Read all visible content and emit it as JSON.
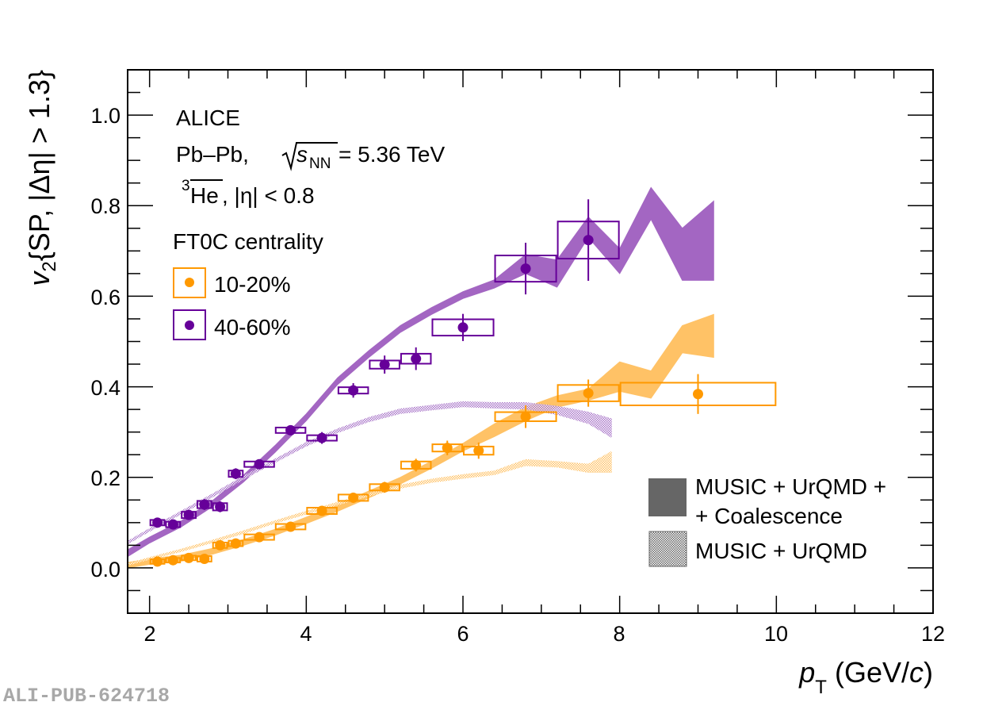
{
  "chart_data": {
    "type": "scatter",
    "title": "",
    "xlabel": "p_T (GeV/c)",
    "xlabel_parts": {
      "p": "p",
      "sub": "T",
      "rest": " (GeV/",
      "c": "c",
      "close": ")"
    },
    "ylabel": "v2{SP, |Δη| > 1.3}",
    "ylabel_parts": {
      "v": "v",
      "sub": "2",
      "rest": "{SP, |Δη| > 1.3}"
    },
    "xlim": [
      1.72,
      12
    ],
    "ylim": [
      -0.1,
      1.1
    ],
    "xticks": [
      2,
      4,
      6,
      8,
      10,
      12
    ],
    "xtick_labels": [
      "2",
      "4",
      "6",
      "8",
      "10",
      "12"
    ],
    "yticks": [
      0.0,
      0.2,
      0.4,
      0.6,
      0.8,
      1.0
    ],
    "ytick_labels": [
      "0.0",
      "0.2",
      "0.4",
      "0.6",
      "0.8",
      "1.0"
    ],
    "grid": false,
    "annotations": {
      "experiment": "ALICE",
      "system": "Pb–Pb,",
      "energy_sym": "s",
      "energy_sub": "NN",
      "energy_val": "= 5.36 TeV",
      "particle_sup": "3",
      "particle": "He",
      "particle_cut": ", |η| < 0.8",
      "legend_title": "FT0C centrality"
    },
    "legend": {
      "placement": "top-left",
      "entries": [
        "10-20%",
        "40-60%"
      ],
      "model_placement": "bottom-right",
      "model_entries": [
        "MUSIC + UrQMD +",
        "+ Coalescence",
        "MUSIC + UrQMD"
      ]
    },
    "series": [
      {
        "name": "10-20%",
        "color": "#ff9900",
        "x": [
          2.1,
          2.3,
          2.5,
          2.7,
          2.9,
          3.1,
          3.4,
          3.8,
          4.2,
          4.6,
          5.0,
          5.4,
          5.8,
          6.2,
          6.8,
          7.6,
          9.0
        ],
        "x_lo": [
          2.0,
          2.2,
          2.4,
          2.6,
          2.8,
          3.0,
          3.2,
          3.6,
          4.0,
          4.4,
          4.8,
          5.2,
          5.6,
          6.0,
          6.4,
          7.2,
          8.0
        ],
        "x_hi": [
          2.2,
          2.4,
          2.6,
          2.8,
          3.0,
          3.2,
          3.6,
          4.0,
          4.4,
          4.8,
          5.2,
          5.6,
          6.0,
          6.4,
          7.2,
          8.0,
          10.0
        ],
        "y": [
          0.014,
          0.017,
          0.022,
          0.02,
          0.05,
          0.054,
          0.068,
          0.091,
          0.126,
          0.155,
          0.178,
          0.227,
          0.265,
          0.259,
          0.334,
          0.386,
          0.384
        ],
        "stat": [
          0.008,
          0.008,
          0.008,
          0.009,
          0.01,
          0.01,
          0.009,
          0.01,
          0.01,
          0.011,
          0.012,
          0.014,
          0.016,
          0.018,
          0.025,
          0.03,
          0.044
        ],
        "syst": [
          0.005,
          0.005,
          0.005,
          0.006,
          0.006,
          0.006,
          0.006,
          0.006,
          0.007,
          0.007,
          0.007,
          0.008,
          0.008,
          0.009,
          0.01,
          0.018,
          0.025
        ]
      },
      {
        "name": "40-60%",
        "color": "#660099",
        "x": [
          2.1,
          2.3,
          2.5,
          2.7,
          2.9,
          3.1,
          3.4,
          3.8,
          4.2,
          4.6,
          5.0,
          5.4,
          6.0,
          6.8,
          7.6
        ],
        "x_lo": [
          2.0,
          2.2,
          2.4,
          2.6,
          2.8,
          3.0,
          3.2,
          3.6,
          4.0,
          4.4,
          4.8,
          5.2,
          5.6,
          6.4,
          7.2
        ],
        "x_hi": [
          2.2,
          2.4,
          2.6,
          2.8,
          3.0,
          3.2,
          3.6,
          4.0,
          4.4,
          4.8,
          5.2,
          5.6,
          6.4,
          7.2,
          8.0
        ],
        "y": [
          0.1,
          0.096,
          0.117,
          0.14,
          0.135,
          0.208,
          0.229,
          0.304,
          0.287,
          0.392,
          0.449,
          0.462,
          0.531,
          0.661,
          0.724
        ],
        "stat": [
          0.009,
          0.01,
          0.011,
          0.012,
          0.012,
          0.012,
          0.01,
          0.011,
          0.013,
          0.016,
          0.02,
          0.025,
          0.03,
          0.057,
          0.09
        ],
        "syst": [
          0.006,
          0.006,
          0.007,
          0.008,
          0.008,
          0.007,
          0.006,
          0.006,
          0.006,
          0.007,
          0.009,
          0.011,
          0.018,
          0.029,
          0.041
        ]
      }
    ],
    "models": [
      {
        "name": "MUSIC + UrQMD + Coalescence (40-60%)",
        "style": "solid",
        "color": "#a366c2",
        "x": [
          1.72,
          2.0,
          2.4,
          2.8,
          3.2,
          3.6,
          4.0,
          4.4,
          4.8,
          5.2,
          5.6,
          6.0,
          6.4,
          6.8,
          7.2,
          7.6,
          8.0,
          8.4,
          8.8,
          9.2
        ],
        "low": [
          0.025,
          0.055,
          0.09,
          0.135,
          0.19,
          0.255,
          0.325,
          0.405,
          0.465,
          0.52,
          0.56,
          0.595,
          0.618,
          0.65,
          0.62,
          0.73,
          0.65,
          0.77,
          0.635,
          0.635
        ],
        "high": [
          0.04,
          0.068,
          0.103,
          0.148,
          0.205,
          0.27,
          0.34,
          0.42,
          0.48,
          0.535,
          0.575,
          0.61,
          0.636,
          0.692,
          0.68,
          0.775,
          0.705,
          0.84,
          0.75,
          0.81
        ]
      },
      {
        "name": "MUSIC + UrQMD + Coalescence (10-20%)",
        "style": "solid",
        "color": "#ffc266",
        "x": [
          1.72,
          2.0,
          2.4,
          2.8,
          3.2,
          3.6,
          4.0,
          4.4,
          4.8,
          5.2,
          5.6,
          6.0,
          6.4,
          6.8,
          7.2,
          7.6,
          8.0,
          8.4,
          8.8,
          9.2
        ],
        "low": [
          0.0,
          0.008,
          0.015,
          0.03,
          0.05,
          0.072,
          0.098,
          0.125,
          0.155,
          0.185,
          0.22,
          0.258,
          0.29,
          0.325,
          0.355,
          0.37,
          0.39,
          0.375,
          0.475,
          0.465
        ],
        "high": [
          0.012,
          0.02,
          0.028,
          0.043,
          0.063,
          0.085,
          0.112,
          0.14,
          0.17,
          0.2,
          0.236,
          0.275,
          0.318,
          0.355,
          0.38,
          0.395,
          0.455,
          0.435,
          0.535,
          0.56
        ]
      },
      {
        "name": "MUSIC + UrQMD (40-60%)",
        "style": "hatched",
        "color": "#9b5fc0",
        "x": [
          1.72,
          2.0,
          2.4,
          2.8,
          3.2,
          3.6,
          4.0,
          4.4,
          4.8,
          5.2,
          5.6,
          6.0,
          6.4,
          6.8,
          7.2,
          7.6,
          7.9
        ],
        "low": [
          0.052,
          0.08,
          0.118,
          0.155,
          0.195,
          0.232,
          0.268,
          0.298,
          0.322,
          0.34,
          0.348,
          0.355,
          0.352,
          0.35,
          0.338,
          0.318,
          0.287
        ],
        "high": [
          0.06,
          0.088,
          0.126,
          0.164,
          0.204,
          0.241,
          0.278,
          0.308,
          0.333,
          0.352,
          0.36,
          0.368,
          0.366,
          0.366,
          0.358,
          0.345,
          0.33
        ]
      },
      {
        "name": "MUSIC + UrQMD (10-20%)",
        "style": "hatched",
        "color": "#ffb84d",
        "x": [
          1.72,
          2.0,
          2.4,
          2.8,
          3.2,
          3.6,
          4.0,
          4.4,
          4.8,
          5.2,
          5.6,
          6.0,
          6.4,
          6.8,
          7.2,
          7.6,
          7.9
        ],
        "low": [
          0.005,
          0.018,
          0.035,
          0.055,
          0.075,
          0.098,
          0.118,
          0.138,
          0.158,
          0.175,
          0.188,
          0.197,
          0.205,
          0.225,
          0.222,
          0.21,
          0.21
        ],
        "high": [
          0.01,
          0.024,
          0.042,
          0.062,
          0.083,
          0.105,
          0.126,
          0.146,
          0.166,
          0.184,
          0.197,
          0.207,
          0.215,
          0.24,
          0.236,
          0.23,
          0.258
        ]
      }
    ]
  },
  "watermark": "ALI-PUB-624718"
}
